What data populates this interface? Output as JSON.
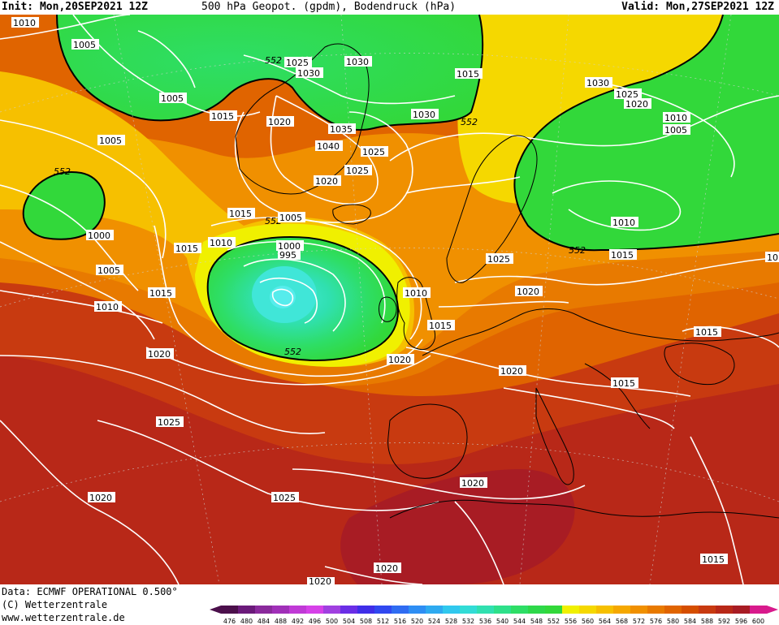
{
  "header": {
    "init": "Init: Mon,20SEP2021 12Z",
    "title": "500 hPa Geopot. (gpdm), Bodendruck (hPa)",
    "valid": "Valid: Mon,27SEP2021 12Z"
  },
  "footer": {
    "data_line": "Data: ECMWF OPERATIONAL 0.500°",
    "copyright": "(C) Wetterzentrale",
    "url": "www.wetterzentrale.de"
  },
  "scale": {
    "labels": [
      "476",
      "480",
      "484",
      "488",
      "492",
      "496",
      "500",
      "504",
      "508",
      "512",
      "516",
      "520",
      "524",
      "528",
      "532",
      "536",
      "540",
      "544",
      "548",
      "552",
      "556",
      "560",
      "564",
      "568",
      "572",
      "576",
      "580",
      "584",
      "588",
      "592",
      "596",
      "600"
    ],
    "colors": [
      "#4b0f4b",
      "#6b1a7a",
      "#8a2a9c",
      "#a030b8",
      "#c03ad6",
      "#d641e8",
      "#a040e0",
      "#6a2ee6",
      "#3f2ee8",
      "#3048f0",
      "#2f6cf2",
      "#2e8ef4",
      "#2eaaf0",
      "#30c8ee",
      "#32dcd6",
      "#30e0b0",
      "#2ee08a",
      "#2ede66",
      "#2ed84a",
      "#32d83a",
      "#f0f000",
      "#f5d800",
      "#f6c000",
      "#f5a800",
      "#f09000",
      "#e87a00",
      "#e06400",
      "#d54e00",
      "#c83a10",
      "#b82818",
      "#a81c24",
      "#d81a8c"
    ]
  },
  "map": {
    "labels_552": [
      {
        "text": "552"
      },
      {
        "text": "552"
      },
      {
        "text": "552"
      },
      {
        "text": "552"
      },
      {
        "text": "552"
      },
      {
        "text": "552"
      }
    ],
    "isobars": [
      {
        "text": "1010"
      },
      {
        "text": "1005"
      },
      {
        "text": "1025"
      },
      {
        "text": "1030"
      },
      {
        "text": "1030"
      },
      {
        "text": "1015"
      },
      {
        "text": "1005"
      },
      {
        "text": "1015"
      },
      {
        "text": "1020"
      },
      {
        "text": "1035"
      },
      {
        "text": "1040"
      },
      {
        "text": "1025"
      },
      {
        "text": "1025"
      },
      {
        "text": "1030"
      },
      {
        "text": "1005"
      },
      {
        "text": "1030"
      },
      {
        "text": "1025"
      },
      {
        "text": "1020"
      },
      {
        "text": "1010"
      },
      {
        "text": "1005"
      },
      {
        "text": "1020"
      },
      {
        "text": "1015"
      },
      {
        "text": "1005"
      },
      {
        "text": "1000"
      },
      {
        "text": "1010"
      },
      {
        "text": "1015"
      },
      {
        "text": "1000"
      },
      {
        "text": "995"
      },
      {
        "text": "1005"
      },
      {
        "text": "1010"
      },
      {
        "text": "1015"
      },
      {
        "text": "1020"
      },
      {
        "text": "1010"
      },
      {
        "text": "1025"
      },
      {
        "text": "1015"
      },
      {
        "text": "1020"
      },
      {
        "text": "1015"
      },
      {
        "text": "1010"
      },
      {
        "text": "1020"
      },
      {
        "text": "1015"
      },
      {
        "text": "1020"
      },
      {
        "text": "1015"
      },
      {
        "text": "1025"
      },
      {
        "text": "1020"
      },
      {
        "text": "1025"
      },
      {
        "text": "1020"
      },
      {
        "text": "1020"
      },
      {
        "text": "1020"
      },
      {
        "text": "1015"
      },
      {
        "text": "10"
      }
    ]
  }
}
